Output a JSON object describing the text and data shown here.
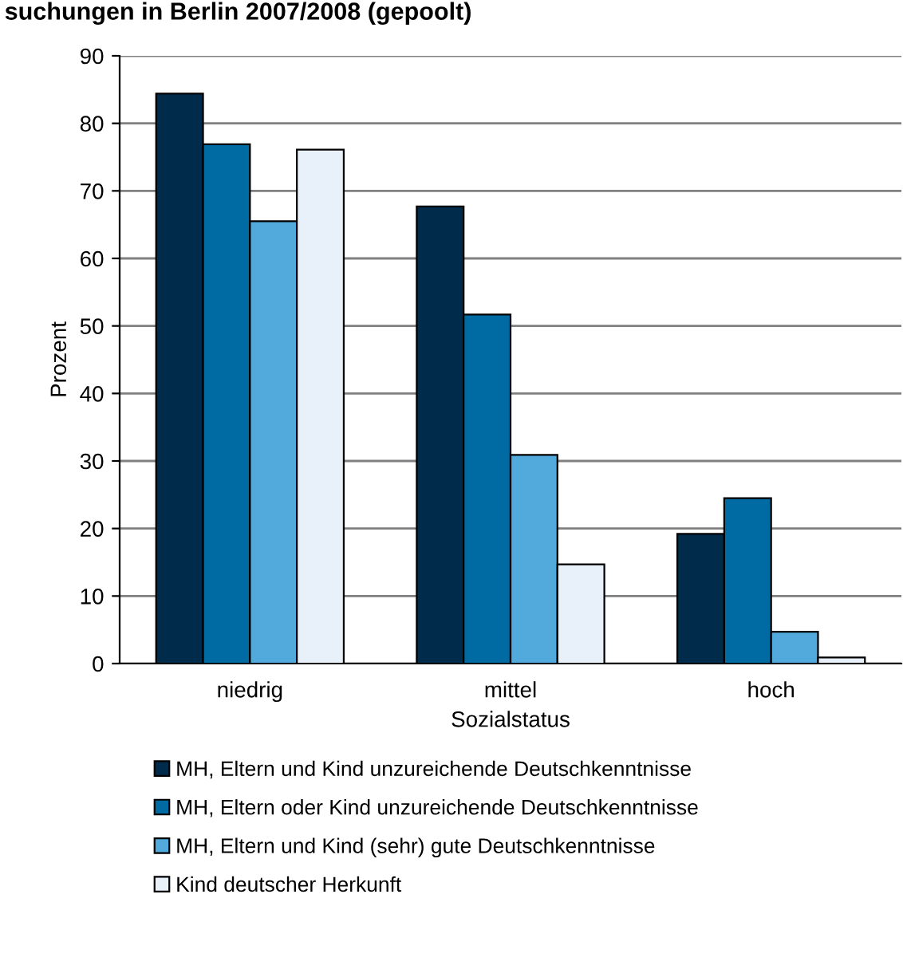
{
  "chart_data": {
    "type": "bar",
    "title": "suchungen in Berlin 2007/2008 (gepoolt)",
    "xlabel": "Sozialstatus",
    "ylabel": "Prozent",
    "categories": [
      "niedrig",
      "mittel",
      "hoch"
    ],
    "series": [
      {
        "name": "MH, Eltern und Kind unzureichende Deutschkenntnisse",
        "color": "#002b4a",
        "values": [
          84.4,
          67.7,
          19.2
        ]
      },
      {
        "name": "MH, Eltern oder Kind unzureichende Deutschkenntnisse",
        "color": "#006aa3",
        "values": [
          76.9,
          51.7,
          24.5
        ]
      },
      {
        "name": "MH, Eltern und Kind (sehr) gute Deutschkenntnisse",
        "color": "#51aadb",
        "values": [
          65.5,
          30.9,
          4.7
        ]
      },
      {
        "name": "Kind deutscher Herkunft",
        "color": "#e8f0fa",
        "values": [
          76.1,
          14.7,
          0.9
        ]
      }
    ],
    "ylim": [
      0,
      90
    ],
    "yticks": [
      0,
      10,
      20,
      30,
      40,
      50,
      60,
      70,
      80,
      90
    ],
    "grid": "y",
    "legend": "bottom"
  }
}
